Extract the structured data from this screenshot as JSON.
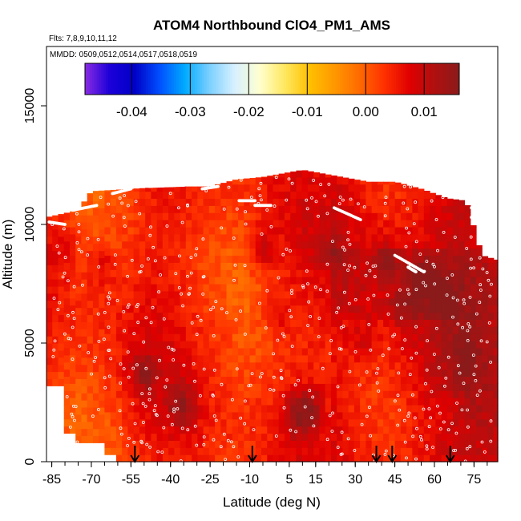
{
  "chart_data": {
    "type": "heatmap",
    "title": "ATOM4 Northbound ClO4_PM1_AMS",
    "subtitle_flights": "Flts: 7,8,9,10,11,12",
    "subtitle_dates": "MMDD: 0509,0512,0514,0517,0518,0519",
    "xlabel": "Latitude (deg N)",
    "ylabel": "Altitude (m)",
    "xlim": [
      -87,
      84
    ],
    "ylim": [
      0,
      17500
    ],
    "x_ticks": [
      -85,
      -70,
      -55,
      -40,
      -25,
      -10,
      5,
      15,
      30,
      45,
      60,
      75
    ],
    "x_tick_labels": [
      "-85",
      "-70",
      "-55",
      "-40",
      "-25",
      "-10",
      "5",
      "15",
      "30",
      "45",
      "60",
      "75"
    ],
    "y_ticks": [
      0,
      5000,
      10000,
      15000
    ],
    "y_tick_labels": [
      "0",
      "5000",
      "10000",
      "15000"
    ],
    "colorbar": {
      "range": [
        -0.048,
        0.016
      ],
      "ticks": [
        -0.04,
        -0.03,
        -0.02,
        -0.01,
        0.0,
        0.01
      ],
      "tick_labels": [
        "-0.04",
        "-0.03",
        "-0.02",
        "-0.01",
        "0.00",
        "0.01"
      ],
      "colors": [
        "#8a2be2",
        "#1a00d8",
        "#0000c8",
        "#0050ff",
        "#00aaff",
        "#7dd0ff",
        "#d8f0ff",
        "#ffffd0",
        "#ffe860",
        "#ffc000",
        "#ff9800",
        "#ff6a00",
        "#ff3000",
        "#e00000",
        "#b01010",
        "#8b1a1a"
      ]
    },
    "flight_profile_arrows_lat": [
      -53.5,
      -9,
      38,
      44,
      66
    ],
    "cells": [
      {
        "lat": -80,
        "alt": 9000,
        "value": 0.008
      },
      {
        "lat": -74,
        "alt": 2500,
        "value": 0.004
      },
      {
        "lat": -66,
        "alt": 8300,
        "value": 0.009
      },
      {
        "lat": -50,
        "alt": 3700,
        "value": 0.012
      },
      {
        "lat": -36,
        "alt": 2400,
        "value": 0.013
      },
      {
        "lat": -20,
        "alt": 6000,
        "value": 0.007
      },
      {
        "lat": -5,
        "alt": 9000,
        "value": 0.011
      },
      {
        "lat": 0,
        "alt": 6200,
        "value": 0.01
      },
      {
        "lat": 7,
        "alt": 2000,
        "value": 0.012
      },
      {
        "lat": 13,
        "alt": 2200,
        "value": 0.013
      },
      {
        "lat": 20,
        "alt": 9000,
        "value": 0.009
      },
      {
        "lat": 33,
        "alt": 5200,
        "value": 0.008
      },
      {
        "lat": 42,
        "alt": 8500,
        "value": 0.011
      },
      {
        "lat": 48,
        "alt": 6500,
        "value": 0.01
      },
      {
        "lat": 55,
        "alt": 7700,
        "value": 0.012
      },
      {
        "lat": 63,
        "alt": 7000,
        "value": 0.011
      },
      {
        "lat": 65,
        "alt": 2300,
        "value": 0.003
      },
      {
        "lat": 72,
        "alt": 4500,
        "value": 0.009
      }
    ]
  }
}
